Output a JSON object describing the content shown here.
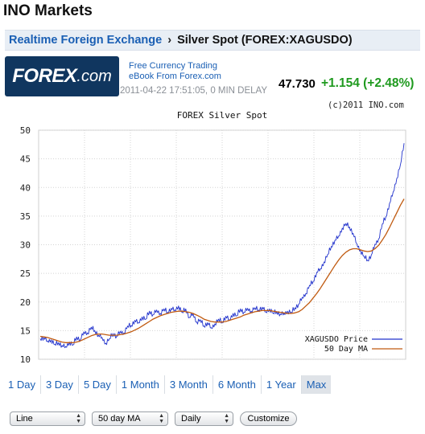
{
  "site": {
    "title": "INO Markets"
  },
  "breadcrumb": {
    "section": "Realtime Foreign Exchange",
    "separator": "›",
    "current": "Silver Spot (FOREX:XAGUSDO)"
  },
  "ad": {
    "brand": "FOREX",
    "brand_suffix": ".com",
    "link_line1": "Free Currency Trading",
    "link_line2": "eBook From Forex.com"
  },
  "quote": {
    "timestamp": "2011-04-22 17:51:05, 0 MIN DELAY",
    "price": "47.730",
    "change": "+1.154 (+2.48%)",
    "change_color": "#1f9a1f"
  },
  "copyright": "(c)2011 INO.com",
  "chart_data": {
    "type": "line",
    "title": "FOREX Silver Spot",
    "ylim": [
      10,
      50
    ],
    "yticks": [
      10,
      15,
      20,
      25,
      30,
      35,
      40,
      45,
      50
    ],
    "grid": true,
    "legend_position": "bottom-right",
    "series": [
      {
        "name": "XAGUSDO Price",
        "color": "#2233cc",
        "values": [
          13.6,
          13.8,
          13.2,
          13.4,
          12.6,
          12.9,
          12.4,
          12.2,
          13.0,
          12.5,
          13.9,
          13.4,
          14.8,
          14.6,
          15.6,
          15.0,
          14.2,
          13.8,
          12.8,
          13.6,
          14.5,
          14.0,
          14.9,
          14.6,
          15.8,
          15.9,
          16.8,
          16.4,
          17.4,
          17.0,
          18.4,
          17.8,
          18.6,
          18.0,
          18.8,
          18.2,
          18.9,
          18.6,
          19.3,
          18.2,
          18.8,
          17.3,
          18.0,
          16.5,
          16.9,
          15.8,
          16.4,
          15.5,
          16.2,
          17.0,
          16.5,
          17.5,
          16.9,
          18.0,
          17.6,
          18.8,
          18.2,
          18.9,
          18.4,
          19.0,
          18.6,
          19.1,
          18.3,
          18.8,
          18.1,
          18.3,
          17.9,
          18.0,
          18.4,
          18.2,
          19.0,
          19.6,
          20.8,
          21.5,
          22.9,
          23.6,
          25.2,
          25.8,
          27.0,
          28.3,
          29.7,
          30.8,
          31.5,
          32.9,
          33.7,
          33.1,
          32.0,
          30.2,
          29.0,
          28.0,
          27.3,
          28.2,
          30.1,
          31.0,
          33.6,
          34.9,
          37.2,
          39.2,
          41.6,
          44.0,
          47.73
        ]
      },
      {
        "name": "50 Day MA",
        "color": "#c05a10",
        "values": [
          14.0,
          13.9,
          13.8,
          13.6,
          13.4,
          13.2,
          13.0,
          12.9,
          12.9,
          12.9,
          13.0,
          13.2,
          13.5,
          13.8,
          14.1,
          14.3,
          14.4,
          14.4,
          14.3,
          14.2,
          14.2,
          14.2,
          14.3,
          14.4,
          14.6,
          14.8,
          15.1,
          15.4,
          15.8,
          16.2,
          16.6,
          17.0,
          17.3,
          17.6,
          17.8,
          18.0,
          18.2,
          18.3,
          18.4,
          18.4,
          18.3,
          18.2,
          18.0,
          17.7,
          17.4,
          17.0,
          16.8,
          16.6,
          16.5,
          16.5,
          16.5,
          16.6,
          16.8,
          17.0,
          17.2,
          17.4,
          17.7,
          17.9,
          18.1,
          18.3,
          18.4,
          18.5,
          18.5,
          18.5,
          18.4,
          18.3,
          18.2,
          18.1,
          18.0,
          18.0,
          18.1,
          18.3,
          18.7,
          19.3,
          19.9,
          20.7,
          21.5,
          22.4,
          23.4,
          24.4,
          25.4,
          26.4,
          27.3,
          28.1,
          28.7,
          29.1,
          29.3,
          29.3,
          29.1,
          28.9,
          28.8,
          28.9,
          29.3,
          29.9,
          30.8,
          31.8,
          33.0,
          34.3,
          35.6,
          36.9,
          38.0
        ]
      }
    ]
  },
  "range_tabs": [
    "1 Day",
    "3 Day",
    "5 Day",
    "1 Month",
    "3 Month",
    "6 Month",
    "1 Year",
    "Max"
  ],
  "controls": {
    "chart_type": "Line",
    "overlay": "50 day MA",
    "interval": "Daily",
    "customize": "Customize"
  }
}
